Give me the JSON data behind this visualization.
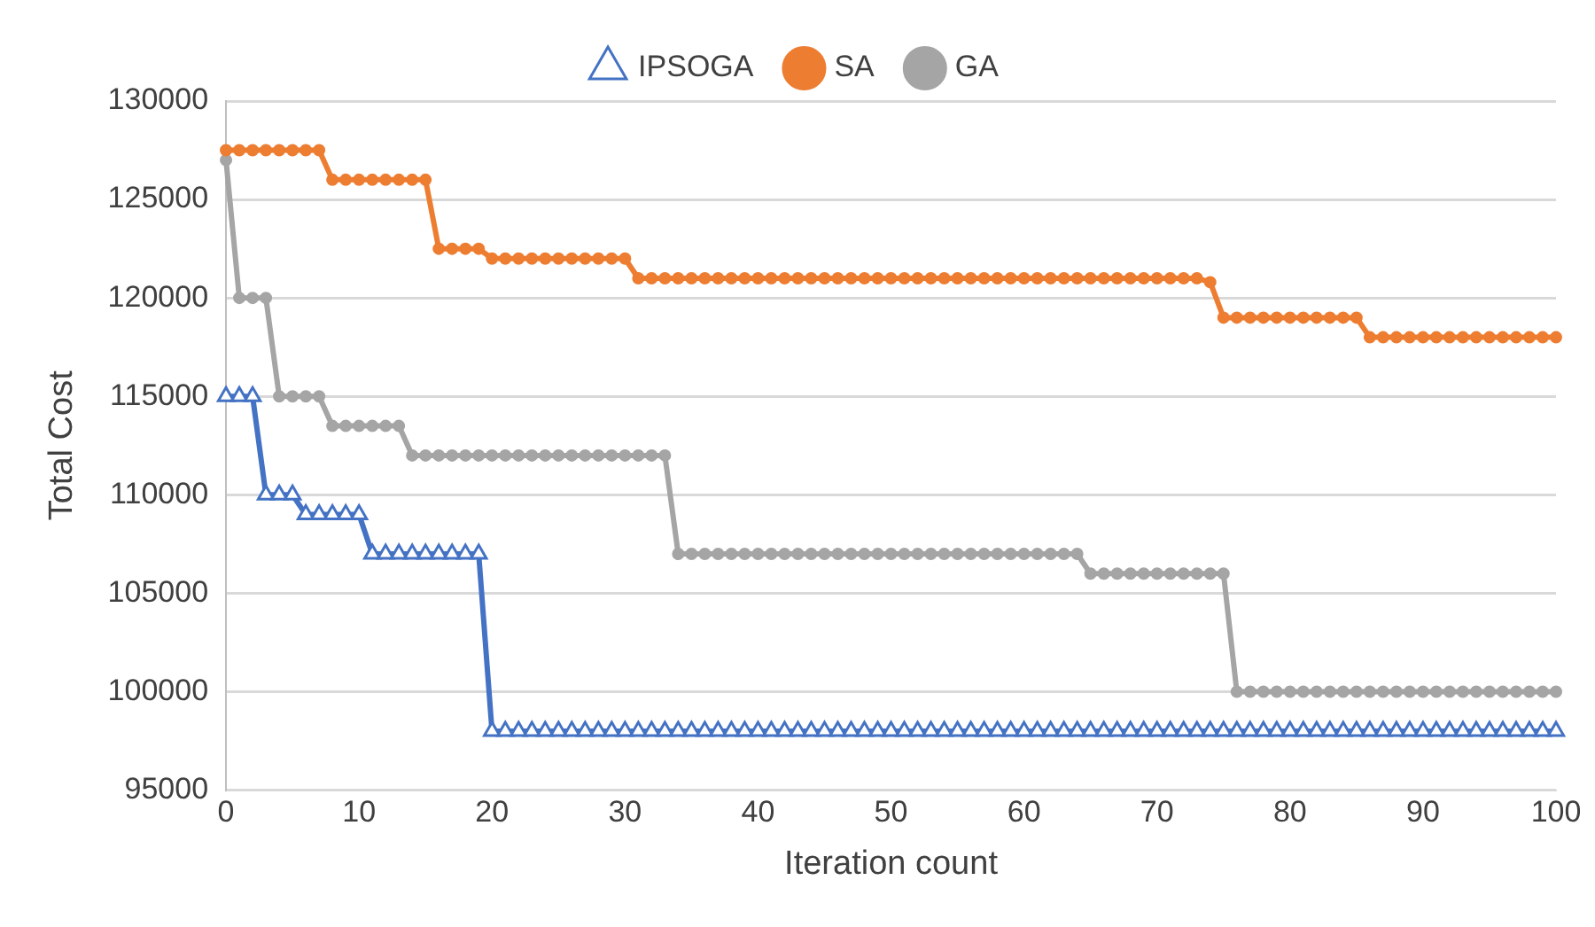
{
  "chart_data": {
    "type": "line",
    "xlabel": "Iteration count",
    "ylabel": "Total Cost",
    "x": [
      0,
      1,
      2,
      3,
      4,
      5,
      6,
      7,
      8,
      9,
      10,
      11,
      12,
      13,
      14,
      15,
      16,
      17,
      18,
      19,
      20,
      21,
      22,
      23,
      24,
      25,
      26,
      27,
      28,
      29,
      30,
      31,
      32,
      33,
      34,
      35,
      36,
      37,
      38,
      39,
      40,
      41,
      42,
      43,
      44,
      45,
      46,
      47,
      48,
      49,
      50,
      51,
      52,
      53,
      54,
      55,
      56,
      57,
      58,
      59,
      60,
      61,
      62,
      63,
      64,
      65,
      66,
      67,
      68,
      69,
      70,
      71,
      72,
      73,
      74,
      75,
      76,
      77,
      78,
      79,
      80,
      81,
      82,
      83,
      84,
      85,
      86,
      87,
      88,
      89,
      90,
      91,
      92,
      93,
      94,
      95,
      96,
      97,
      98,
      99,
      100
    ],
    "xlim": [
      0,
      100
    ],
    "xticks": [
      0,
      10,
      20,
      30,
      40,
      50,
      60,
      70,
      80,
      90,
      100
    ],
    "ylim": [
      95000,
      130000
    ],
    "yticks": [
      95000,
      100000,
      105000,
      110000,
      115000,
      120000,
      125000,
      130000
    ],
    "grid": "y",
    "legend": "top",
    "series": [
      {
        "name": "IPSOGA",
        "color": "#4472c4",
        "marker": "triangle",
        "values": [
          115000,
          115000,
          115000,
          110000,
          110000,
          110000,
          109000,
          109000,
          109000,
          109000,
          109000,
          107000,
          107000,
          107000,
          107000,
          107000,
          107000,
          107000,
          107000,
          107000,
          98000,
          98000,
          98000,
          98000,
          98000,
          98000,
          98000,
          98000,
          98000,
          98000,
          98000,
          98000,
          98000,
          98000,
          98000,
          98000,
          98000,
          98000,
          98000,
          98000,
          98000,
          98000,
          98000,
          98000,
          98000,
          98000,
          98000,
          98000,
          98000,
          98000,
          98000,
          98000,
          98000,
          98000,
          98000,
          98000,
          98000,
          98000,
          98000,
          98000,
          98000,
          98000,
          98000,
          98000,
          98000,
          98000,
          98000,
          98000,
          98000,
          98000,
          98000,
          98000,
          98000,
          98000,
          98000,
          98000,
          98000,
          98000,
          98000,
          98000,
          98000,
          98000,
          98000,
          98000,
          98000,
          98000,
          98000,
          98000,
          98000,
          98000,
          98000,
          98000,
          98000,
          98000,
          98000,
          98000,
          98000,
          98000,
          98000,
          98000,
          98000
        ]
      },
      {
        "name": "SA",
        "color": "#ed7d31",
        "marker": "circle",
        "values": [
          127500,
          127500,
          127500,
          127500,
          127500,
          127500,
          127500,
          127500,
          126000,
          126000,
          126000,
          126000,
          126000,
          126000,
          126000,
          126000,
          122500,
          122500,
          122500,
          122500,
          122000,
          122000,
          122000,
          122000,
          122000,
          122000,
          122000,
          122000,
          122000,
          122000,
          122000,
          121000,
          121000,
          121000,
          121000,
          121000,
          121000,
          121000,
          121000,
          121000,
          121000,
          121000,
          121000,
          121000,
          121000,
          121000,
          121000,
          121000,
          121000,
          121000,
          121000,
          121000,
          121000,
          121000,
          121000,
          121000,
          121000,
          121000,
          121000,
          121000,
          121000,
          121000,
          121000,
          121000,
          121000,
          121000,
          121000,
          121000,
          121000,
          121000,
          121000,
          121000,
          121000,
          121000,
          120800,
          119000,
          119000,
          119000,
          119000,
          119000,
          119000,
          119000,
          119000,
          119000,
          119000,
          119000,
          118000,
          118000,
          118000,
          118000,
          118000,
          118000,
          118000,
          118000,
          118000,
          118000,
          118000,
          118000,
          118000,
          118000,
          118000
        ]
      },
      {
        "name": "GA",
        "color": "#a5a5a5",
        "marker": "circle",
        "values": [
          127000,
          120000,
          120000,
          120000,
          115000,
          115000,
          115000,
          115000,
          113500,
          113500,
          113500,
          113500,
          113500,
          113500,
          112000,
          112000,
          112000,
          112000,
          112000,
          112000,
          112000,
          112000,
          112000,
          112000,
          112000,
          112000,
          112000,
          112000,
          112000,
          112000,
          112000,
          112000,
          112000,
          112000,
          107000,
          107000,
          107000,
          107000,
          107000,
          107000,
          107000,
          107000,
          107000,
          107000,
          107000,
          107000,
          107000,
          107000,
          107000,
          107000,
          107000,
          107000,
          107000,
          107000,
          107000,
          107000,
          107000,
          107000,
          107000,
          107000,
          107000,
          107000,
          107000,
          107000,
          107000,
          106000,
          106000,
          106000,
          106000,
          106000,
          106000,
          106000,
          106000,
          106000,
          106000,
          106000,
          100000,
          100000,
          100000,
          100000,
          100000,
          100000,
          100000,
          100000,
          100000,
          100000,
          100000,
          100000,
          100000,
          100000,
          100000,
          100000,
          100000,
          100000,
          100000,
          100000,
          100000,
          100000,
          100000,
          100000,
          100000
        ]
      }
    ]
  }
}
